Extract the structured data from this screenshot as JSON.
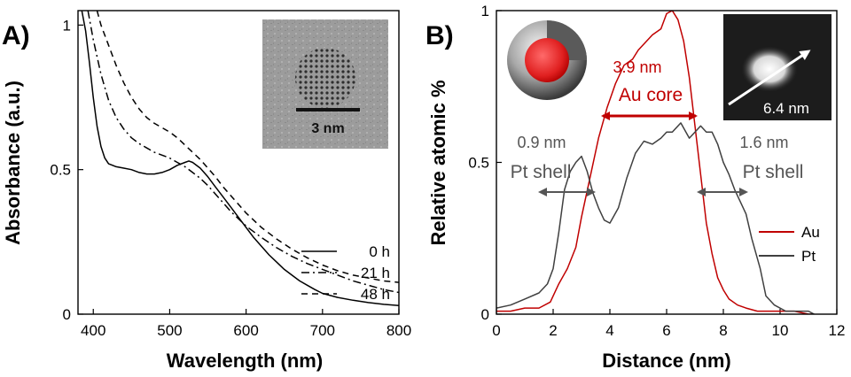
{
  "chart_data": [
    {
      "type": "line",
      "panel_label": "A)",
      "xlabel": "Wavelength (nm)",
      "ylabel": "Absorbance (a.u.)",
      "xlim": [
        380,
        800
      ],
      "ylim": [
        0,
        1.05
      ],
      "xticks": [
        400,
        500,
        600,
        700,
        800
      ],
      "yticks": [
        0,
        0.5,
        1
      ],
      "ytick_labels": [
        "0",
        "0.5",
        "1"
      ],
      "inset_image": {
        "description": "TEM image of nanoparticle",
        "scale_bar_label": "3 nm"
      },
      "series": [
        {
          "name": "0 h",
          "style": "solid",
          "x": [
            385,
            390,
            395,
            400,
            405,
            410,
            415,
            420,
            430,
            440,
            450,
            460,
            470,
            480,
            490,
            500,
            510,
            520,
            525,
            530,
            540,
            550,
            560,
            570,
            580,
            590,
            600,
            610,
            620,
            630,
            640,
            650,
            660,
            670,
            680,
            690,
            700,
            720,
            740,
            760,
            780,
            800
          ],
          "y": [
            1.05,
            0.98,
            0.87,
            0.75,
            0.65,
            0.58,
            0.54,
            0.52,
            0.51,
            0.505,
            0.5,
            0.49,
            0.485,
            0.485,
            0.49,
            0.5,
            0.515,
            0.525,
            0.53,
            0.525,
            0.505,
            0.475,
            0.44,
            0.405,
            0.37,
            0.335,
            0.3,
            0.265,
            0.235,
            0.205,
            0.18,
            0.155,
            0.135,
            0.115,
            0.1,
            0.085,
            0.072,
            0.058,
            0.048,
            0.04,
            0.034,
            0.03
          ]
        },
        {
          "name": "21 h",
          "style": "dashdot",
          "x": [
            393,
            400,
            410,
            420,
            430,
            440,
            450,
            460,
            470,
            480,
            490,
            500,
            510,
            520,
            530,
            540,
            550,
            560,
            570,
            580,
            590,
            600,
            620,
            640,
            660,
            680,
            700,
            720,
            740,
            760,
            780,
            800
          ],
          "y": [
            1.05,
            0.95,
            0.83,
            0.74,
            0.68,
            0.64,
            0.61,
            0.59,
            0.575,
            0.56,
            0.55,
            0.54,
            0.525,
            0.51,
            0.49,
            0.47,
            0.445,
            0.415,
            0.385,
            0.355,
            0.33,
            0.305,
            0.265,
            0.23,
            0.2,
            0.175,
            0.155,
            0.135,
            0.115,
            0.1,
            0.085,
            0.075
          ]
        },
        {
          "name": "48 h",
          "style": "dashed",
          "x": [
            405,
            410,
            420,
            430,
            440,
            450,
            460,
            470,
            480,
            490,
            500,
            510,
            520,
            530,
            540,
            550,
            560,
            570,
            580,
            590,
            600,
            620,
            640,
            660,
            680,
            700,
            720,
            740,
            760,
            780,
            800
          ],
          "y": [
            1.05,
            1.0,
            0.93,
            0.86,
            0.8,
            0.75,
            0.71,
            0.68,
            0.66,
            0.645,
            0.63,
            0.61,
            0.585,
            0.56,
            0.535,
            0.505,
            0.475,
            0.44,
            0.41,
            0.38,
            0.35,
            0.3,
            0.26,
            0.225,
            0.195,
            0.17,
            0.15,
            0.135,
            0.125,
            0.115,
            0.11
          ]
        }
      ]
    },
    {
      "type": "line",
      "panel_label": "B)",
      "xlabel": "Distance (nm)",
      "ylabel": "Relative atomic %",
      "xlim": [
        0,
        12
      ],
      "ylim": [
        0,
        1
      ],
      "xticks": [
        0,
        2,
        4,
        6,
        8,
        10,
        12
      ],
      "yticks": [
        0,
        0.5,
        1
      ],
      "ytick_labels": [
        "0",
        "0.5",
        "1"
      ],
      "series": [
        {
          "name": "Au",
          "color": "#c00000",
          "x": [
            0,
            0.5,
            1,
            1.5,
            1.9,
            2.2,
            2.5,
            2.8,
            3.0,
            3.3,
            3.6,
            3.9,
            4.2,
            4.5,
            4.8,
            5.0,
            5.3,
            5.5,
            5.8,
            6.0,
            6.2,
            6.4,
            6.6,
            6.8,
            7.0,
            7.2,
            7.4,
            7.6,
            7.8,
            8.0,
            8.2,
            8.5,
            8.8,
            9.2,
            9.6,
            10,
            10.5,
            11,
            11.2
          ],
          "y": [
            0.01,
            0.01,
            0.02,
            0.02,
            0.04,
            0.1,
            0.15,
            0.22,
            0.32,
            0.45,
            0.58,
            0.68,
            0.76,
            0.82,
            0.84,
            0.87,
            0.9,
            0.92,
            0.94,
            0.99,
            1.0,
            0.97,
            0.9,
            0.78,
            0.62,
            0.46,
            0.3,
            0.2,
            0.12,
            0.08,
            0.05,
            0.03,
            0.02,
            0.01,
            0.01,
            0.01,
            0.01,
            0.0,
            0.0
          ]
        },
        {
          "name": "Pt",
          "color": "#404040",
          "x": [
            0,
            0.5,
            1,
            1.5,
            1.8,
            2.0,
            2.2,
            2.4,
            2.6,
            2.8,
            3.0,
            3.2,
            3.4,
            3.6,
            3.8,
            4.0,
            4.3,
            4.6,
            4.9,
            5.2,
            5.5,
            5.8,
            6.0,
            6.2,
            6.5,
            6.8,
            7.0,
            7.2,
            7.4,
            7.6,
            7.8,
            8.0,
            8.2,
            8.4,
            8.6,
            8.8,
            9.0,
            9.3,
            9.5,
            9.8,
            10.2,
            10.6,
            11,
            11.2
          ],
          "y": [
            0.02,
            0.03,
            0.05,
            0.07,
            0.1,
            0.15,
            0.27,
            0.41,
            0.47,
            0.5,
            0.52,
            0.47,
            0.4,
            0.35,
            0.31,
            0.3,
            0.35,
            0.45,
            0.53,
            0.57,
            0.56,
            0.58,
            0.6,
            0.6,
            0.63,
            0.58,
            0.6,
            0.62,
            0.6,
            0.6,
            0.56,
            0.5,
            0.46,
            0.41,
            0.37,
            0.33,
            0.25,
            0.15,
            0.06,
            0.03,
            0.01,
            0.01,
            0.01,
            0.0
          ]
        }
      ],
      "annotations": {
        "core_size": "3.9 nm",
        "core_label": "Au core",
        "left_shell_size": "0.9 nm",
        "left_shell_label": "Pt shell",
        "right_shell_size": "1.6 nm",
        "right_shell_label": "Pt shell",
        "inset_size": "6.4 nm"
      }
    }
  ]
}
